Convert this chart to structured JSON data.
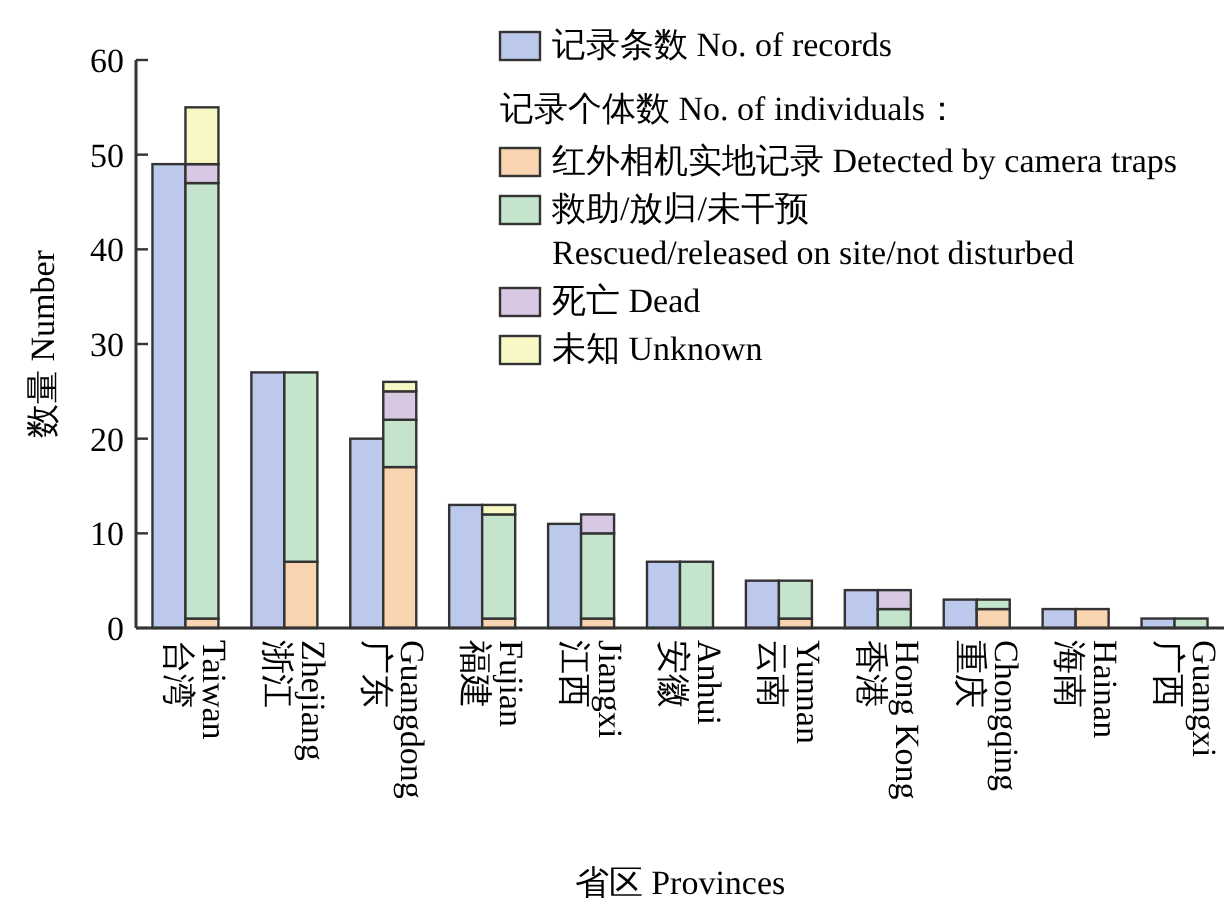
{
  "chart_data": {
    "type": "bar",
    "xlabel": "省区 Provinces",
    "ylabel": "数量 Number",
    "legend": "top right",
    "legend_title": "记录个体数 No. of individuals：",
    "categories": [
      "台湾 Taiwan",
      "浙江 Zhejiang",
      "广东 Guangdong",
      "福建 Fujian",
      "江西 Jiangxi",
      "安徽 Anhui",
      "云南 Yunnan",
      "香港 Hong Kong",
      "重庆 Chongqing",
      "海南 Hainan",
      "广西 Guangxi"
    ],
    "ylim": [
      0,
      60
    ],
    "yticks": [
      0,
      10,
      20,
      30,
      40,
      50,
      60
    ],
    "series": [
      {
        "name": "记录条数 No. of records",
        "color": "#bcc8ec",
        "values": [
          49,
          27,
          20,
          13,
          11,
          7,
          5,
          4,
          3,
          2,
          1
        ]
      },
      {
        "name": "红外相机实地记录 Detected by camera traps",
        "color": "#f8d4b0",
        "base": [
          0,
          0,
          0,
          0,
          0,
          null,
          0,
          null,
          0,
          0,
          null
        ],
        "values": [
          1,
          7,
          17,
          1,
          1,
          null,
          1,
          null,
          2,
          2,
          null
        ]
      },
      {
        "name": "救助/放归/未干预 Rescued/released on site/not disturbed",
        "color": "#c4e4cc",
        "base": [
          1,
          7,
          17,
          1,
          1,
          0,
          1,
          0,
          2,
          null,
          0
        ],
        "values": [
          46,
          20,
          5,
          11,
          9,
          7,
          4,
          2,
          1,
          null,
          1
        ]
      },
      {
        "name": "死亡 Dead",
        "color": "#d8c8e4",
        "base": [
          47,
          null,
          22,
          null,
          10,
          null,
          null,
          2,
          null,
          null,
          null
        ],
        "values": [
          2,
          null,
          3,
          null,
          2,
          null,
          null,
          2,
          null,
          null,
          null
        ]
      },
      {
        "name": "未知 Unknown",
        "color": "#f8f8c4",
        "base": [
          49,
          null,
          25,
          12,
          null,
          null,
          null,
          null,
          null,
          null,
          null
        ],
        "values": [
          6,
          null,
          1,
          1,
          null,
          null,
          null,
          null,
          null,
          null,
          null
        ]
      }
    ]
  }
}
